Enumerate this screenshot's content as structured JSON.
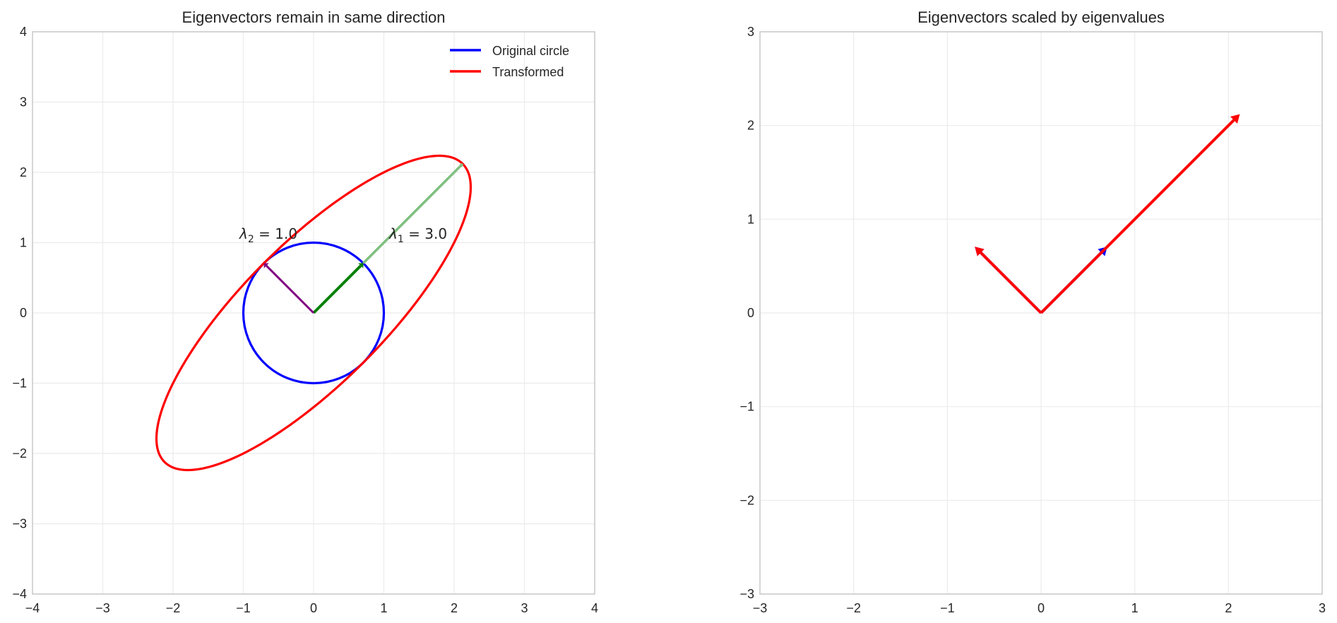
{
  "chart_data": [
    {
      "type": "line",
      "title": "Eigenvectors remain in same direction",
      "xlabel": "",
      "ylabel": "",
      "xlim": [
        -4,
        4
      ],
      "ylim": [
        -4,
        4
      ],
      "xticks": [
        "-4",
        "-3",
        "-2",
        "-1",
        "0",
        "1",
        "2",
        "3",
        "4"
      ],
      "yticks": [
        "-4",
        "-3",
        "-2",
        "-1",
        "0",
        "1",
        "2",
        "3",
        "4"
      ],
      "grid": true,
      "legend_position": "upper right",
      "legend": [
        {
          "label": "Original circle",
          "color": "#0000ff"
        },
        {
          "label": "Transformed",
          "color": "#ff0000"
        }
      ],
      "series": [
        {
          "name": "Original circle",
          "shape": "circle",
          "center": [
            0,
            0
          ],
          "radius": 1,
          "color": "#0000ff"
        },
        {
          "name": "Transformed",
          "shape": "ellipse",
          "center": [
            0,
            0
          ],
          "matrix": [
            [
              2,
              1
            ],
            [
              1,
              2
            ]
          ],
          "semi_axes": [
            3,
            1
          ],
          "angle_deg": 45,
          "color": "#ff0000"
        }
      ],
      "vectors": [
        {
          "name": "v1",
          "from": [
            0,
            0
          ],
          "to": [
            0.707,
            0.707
          ],
          "color": "#008000"
        },
        {
          "name": "lambda1*v1",
          "from": [
            0.707,
            0.707
          ],
          "to": [
            2.121,
            2.121
          ],
          "color": "#80c080"
        },
        {
          "name": "v2",
          "from": [
            0,
            0
          ],
          "to": [
            -0.707,
            0.707
          ],
          "color": "#800080"
        }
      ],
      "annotations": [
        {
          "text_main": "λ",
          "sub": "2",
          "rest": " = 1.0",
          "x": -1.05,
          "y": 1.1
        },
        {
          "text_main": "λ",
          "sub": "1",
          "rest": " = 3.0",
          "x": 1.08,
          "y": 1.1
        }
      ]
    },
    {
      "type": "line",
      "title": "Eigenvectors scaled by eigenvalues",
      "xlabel": "",
      "ylabel": "",
      "xlim": [
        -3,
        3
      ],
      "ylim": [
        -3,
        3
      ],
      "xticks": [
        "-3",
        "-2",
        "-1",
        "0",
        "1",
        "2",
        "3"
      ],
      "yticks": [
        "-3",
        "-2",
        "-1",
        "0",
        "1",
        "2",
        "3"
      ],
      "grid": true,
      "vectors": [
        {
          "name": "v1",
          "from": [
            0,
            0
          ],
          "to": [
            0.707,
            0.707
          ],
          "color": "#0000ff"
        },
        {
          "name": "v2",
          "from": [
            0,
            0
          ],
          "to": [
            -0.707,
            0.707
          ],
          "color": "#0000ff"
        },
        {
          "name": "lambda1*v1",
          "from": [
            0,
            0
          ],
          "to": [
            2.121,
            2.121
          ],
          "color": "#ff0000"
        },
        {
          "name": "lambda2*v2",
          "from": [
            0,
            0
          ],
          "to": [
            -0.707,
            0.707
          ],
          "color": "#ff0000"
        }
      ]
    }
  ],
  "left": {
    "title": "Eigenvectors remain in same direction",
    "legend": {
      "item1": "Original circle",
      "item2": "Transformed"
    },
    "anno1": {
      "main": "λ",
      "sub": "2",
      "rest": " = 1.0"
    },
    "anno2": {
      "main": "λ",
      "sub": "1",
      "rest": " = 3.0"
    }
  },
  "right": {
    "title": "Eigenvectors scaled by eigenvalues"
  }
}
